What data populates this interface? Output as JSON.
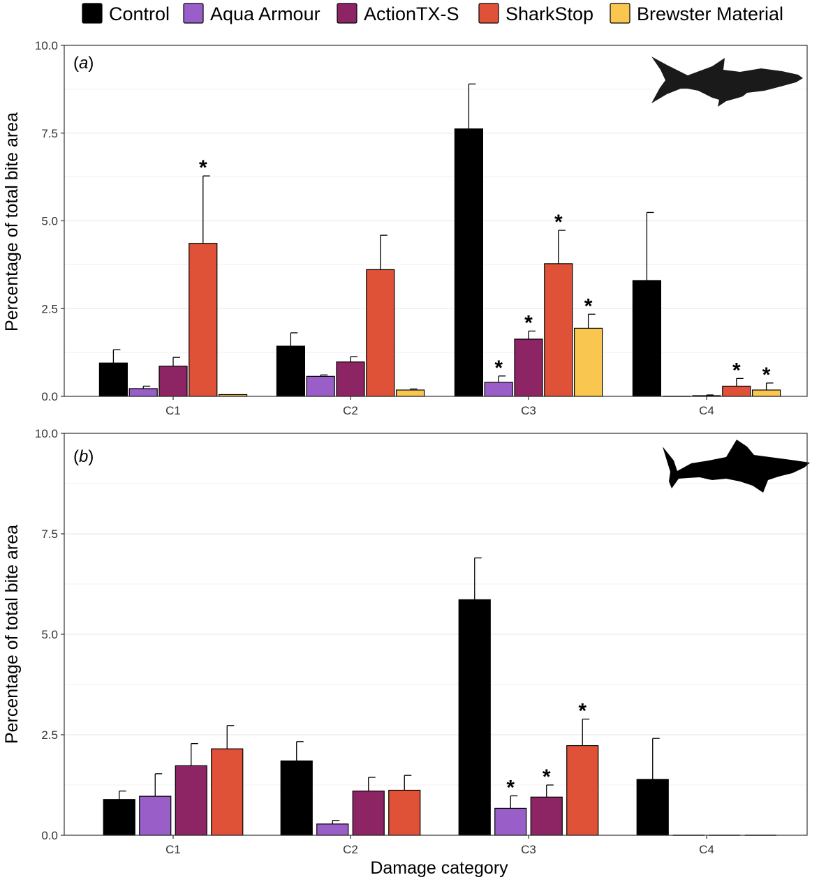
{
  "colors": {
    "Control": "#000000",
    "Aqua Armour": "#9a5ec9",
    "ActionTX-S": "#8d2464",
    "SharkStop": "#e05238",
    "Brewster Material": "#f9c74f",
    "grid": "#ebebeb",
    "star": "#000000"
  },
  "legend": {
    "items": [
      {
        "label": "Control",
        "color_key": "Control"
      },
      {
        "label": "Aqua Armour",
        "color_key": "Aqua Armour"
      },
      {
        "label": "ActionTX-S",
        "color_key": "ActionTX-S"
      },
      {
        "label": "SharkStop",
        "color_key": "SharkStop"
      },
      {
        "label": "Brewster Material",
        "color_key": "Brewster Material"
      }
    ]
  },
  "xlabel": "Damage category",
  "chart_data": [
    {
      "type": "bar",
      "panel": "a",
      "panel_label_letter": "a",
      "icon": "white-shark-silhouette-icon",
      "ylabel": "Percentage of total bite area",
      "ylim": [
        0,
        10
      ],
      "yticks": [
        "0.0",
        "2.5",
        "5.0",
        "7.5",
        "10.0"
      ],
      "categories": [
        "C1",
        "C2",
        "C3",
        "C4"
      ],
      "series": [
        {
          "name": "Control",
          "values": [
            0.95,
            1.43,
            7.62,
            3.3
          ],
          "errors": [
            0.38,
            0.38,
            1.28,
            1.94
          ],
          "significant": [
            false,
            false,
            false,
            false
          ]
        },
        {
          "name": "Aqua Armour",
          "values": [
            0.22,
            0.57,
            0.4,
            0.0
          ],
          "errors": [
            0.07,
            0.04,
            0.18,
            0.0
          ],
          "significant": [
            false,
            false,
            true,
            false
          ]
        },
        {
          "name": "ActionTX-S",
          "values": [
            0.86,
            0.98,
            1.63,
            0.02
          ],
          "errors": [
            0.25,
            0.15,
            0.23,
            0.02
          ],
          "significant": [
            false,
            false,
            true,
            false
          ]
        },
        {
          "name": "SharkStop",
          "values": [
            4.36,
            3.61,
            3.78,
            0.29
          ],
          "errors": [
            1.92,
            0.98,
            0.95,
            0.22
          ],
          "significant": [
            true,
            false,
            true,
            true
          ]
        },
        {
          "name": "Brewster Material",
          "values": [
            0.05,
            0.18,
            1.94,
            0.18
          ],
          "errors": [
            0.0,
            0.03,
            0.4,
            0.2
          ],
          "significant": [
            false,
            false,
            true,
            true
          ]
        }
      ]
    },
    {
      "type": "bar",
      "panel": "b",
      "panel_label_letter": "b",
      "icon": "tiger-shark-silhouette-icon",
      "ylabel": "Percentage of total bite area",
      "ylim": [
        0,
        10
      ],
      "yticks": [
        "0.0",
        "2.5",
        "5.0",
        "7.5",
        "10.0"
      ],
      "categories": [
        "C1",
        "C2",
        "C3",
        "C4"
      ],
      "series": [
        {
          "name": "Control",
          "values": [
            0.89,
            1.85,
            5.86,
            1.39
          ],
          "errors": [
            0.21,
            0.48,
            1.04,
            1.02
          ],
          "significant": [
            false,
            false,
            false,
            false
          ]
        },
        {
          "name": "Aqua Armour",
          "values": [
            0.97,
            0.28,
            0.67,
            0.0
          ],
          "errors": [
            0.56,
            0.09,
            0.31,
            0.0
          ],
          "significant": [
            false,
            false,
            true,
            false
          ]
        },
        {
          "name": "ActionTX-S",
          "values": [
            1.73,
            1.1,
            0.95,
            0.0
          ],
          "errors": [
            0.55,
            0.34,
            0.3,
            0.0
          ],
          "significant": [
            false,
            false,
            true,
            false
          ]
        },
        {
          "name": "SharkStop",
          "values": [
            2.15,
            1.12,
            2.23,
            0.0
          ],
          "errors": [
            0.58,
            0.37,
            0.66,
            0.0
          ],
          "significant": [
            false,
            false,
            true,
            false
          ]
        }
      ]
    }
  ]
}
